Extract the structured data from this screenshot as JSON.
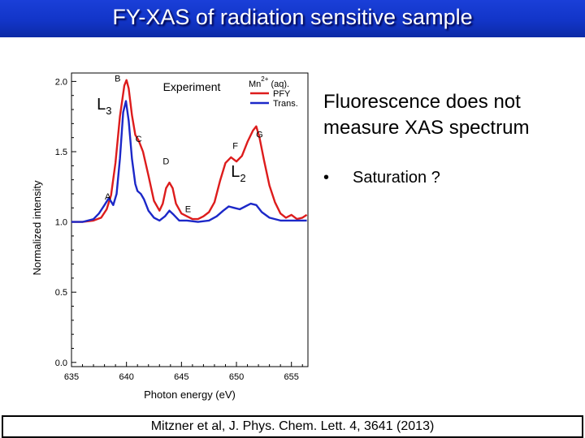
{
  "slide": {
    "title": "FY-XAS of radiation sensitive sample",
    "body_text": "Fluorescence does not measure XAS spectrum",
    "bullet_marker": "•",
    "bullet_text": "Saturation ?",
    "citation": "Mitzner et al, J. Phys. Chem. Lett. 4, 3641 (2013)",
    "title_bar_color": "#1235c8"
  },
  "chart_data": {
    "type": "line",
    "title": "Experiment",
    "xlabel": "Photon energy (eV)",
    "ylabel": "Normalized intensity",
    "xlim": [
      635,
      656.5
    ],
    "ylim": [
      -0.03,
      2.06
    ],
    "x_ticks": [
      "635",
      "640",
      "645",
      "650",
      "655"
    ],
    "y_ticks": [
      "0.0",
      "0.5",
      "1.0",
      "1.5",
      "2.0"
    ],
    "grid": false,
    "legend_position": "top-right",
    "legend_header": {
      "base": "Mn",
      "superscript": "2+",
      "suffix": "(aq)."
    },
    "edge_labels": [
      {
        "base": "L",
        "subscript": "3",
        "x": 637.3,
        "y": 1.8
      },
      {
        "base": "L",
        "subscript": "2",
        "x": 649.5,
        "y": 1.32
      }
    ],
    "annotations": [
      {
        "text": "A",
        "x": 638.3,
        "y": 1.16
      },
      {
        "text": "B",
        "x": 639.2,
        "y": 2.0
      },
      {
        "text": "C",
        "x": 641.1,
        "y": 1.57
      },
      {
        "text": "D",
        "x": 643.6,
        "y": 1.41
      },
      {
        "text": "E",
        "x": 645.6,
        "y": 1.07
      },
      {
        "text": "F",
        "x": 649.9,
        "y": 1.52
      },
      {
        "text": "G",
        "x": 652.1,
        "y": 1.6
      }
    ],
    "series": [
      {
        "name": "PFY",
        "color": "#dd1c1c",
        "points": [
          [
            635,
            1.0
          ],
          [
            636,
            1.0
          ],
          [
            637,
            1.01
          ],
          [
            637.7,
            1.03
          ],
          [
            638.2,
            1.09
          ],
          [
            638.6,
            1.19
          ],
          [
            639.0,
            1.42
          ],
          [
            639.4,
            1.75
          ],
          [
            639.8,
            1.97
          ],
          [
            640.0,
            2.01
          ],
          [
            640.2,
            1.95
          ],
          [
            640.5,
            1.76
          ],
          [
            640.8,
            1.62
          ],
          [
            641.1,
            1.58
          ],
          [
            641.5,
            1.5
          ],
          [
            642.0,
            1.33
          ],
          [
            642.5,
            1.15
          ],
          [
            643.0,
            1.08
          ],
          [
            643.3,
            1.13
          ],
          [
            643.6,
            1.24
          ],
          [
            643.9,
            1.28
          ],
          [
            644.2,
            1.24
          ],
          [
            644.5,
            1.13
          ],
          [
            645.0,
            1.06
          ],
          [
            645.5,
            1.04
          ],
          [
            646.0,
            1.02
          ],
          [
            646.5,
            1.02
          ],
          [
            647.0,
            1.04
          ],
          [
            647.5,
            1.07
          ],
          [
            648.0,
            1.14
          ],
          [
            648.5,
            1.29
          ],
          [
            649.0,
            1.42
          ],
          [
            649.5,
            1.46
          ],
          [
            650.0,
            1.43
          ],
          [
            650.5,
            1.47
          ],
          [
            651.0,
            1.57
          ],
          [
            651.5,
            1.65
          ],
          [
            651.8,
            1.68
          ],
          [
            652.1,
            1.6
          ],
          [
            652.5,
            1.44
          ],
          [
            653.0,
            1.26
          ],
          [
            653.5,
            1.14
          ],
          [
            654.0,
            1.06
          ],
          [
            654.5,
            1.03
          ],
          [
            655.0,
            1.05
          ],
          [
            655.5,
            1.02
          ],
          [
            656.0,
            1.03
          ],
          [
            656.4,
            1.05
          ]
        ]
      },
      {
        "name": "Trans.",
        "color": "#1c28c8",
        "points": [
          [
            635,
            1.0
          ],
          [
            636,
            1.0
          ],
          [
            637,
            1.02
          ],
          [
            637.5,
            1.06
          ],
          [
            638.0,
            1.12
          ],
          [
            638.4,
            1.17
          ],
          [
            638.8,
            1.12
          ],
          [
            639.1,
            1.2
          ],
          [
            639.4,
            1.45
          ],
          [
            639.7,
            1.78
          ],
          [
            639.95,
            1.86
          ],
          [
            640.2,
            1.72
          ],
          [
            640.5,
            1.45
          ],
          [
            640.8,
            1.27
          ],
          [
            641.0,
            1.22
          ],
          [
            641.3,
            1.2
          ],
          [
            641.6,
            1.16
          ],
          [
            642.0,
            1.08
          ],
          [
            642.5,
            1.03
          ],
          [
            643.0,
            1.01
          ],
          [
            643.5,
            1.04
          ],
          [
            643.9,
            1.08
          ],
          [
            644.3,
            1.05
          ],
          [
            644.8,
            1.01
          ],
          [
            645.5,
            1.01
          ],
          [
            646.5,
            1.0
          ],
          [
            647.5,
            1.01
          ],
          [
            648.2,
            1.04
          ],
          [
            648.8,
            1.08
          ],
          [
            649.3,
            1.11
          ],
          [
            649.8,
            1.1
          ],
          [
            650.3,
            1.09
          ],
          [
            650.8,
            1.11
          ],
          [
            651.3,
            1.13
          ],
          [
            651.8,
            1.12
          ],
          [
            652.3,
            1.07
          ],
          [
            653.0,
            1.03
          ],
          [
            654.0,
            1.01
          ],
          [
            655.0,
            1.01
          ],
          [
            656.4,
            1.01
          ]
        ]
      }
    ]
  }
}
